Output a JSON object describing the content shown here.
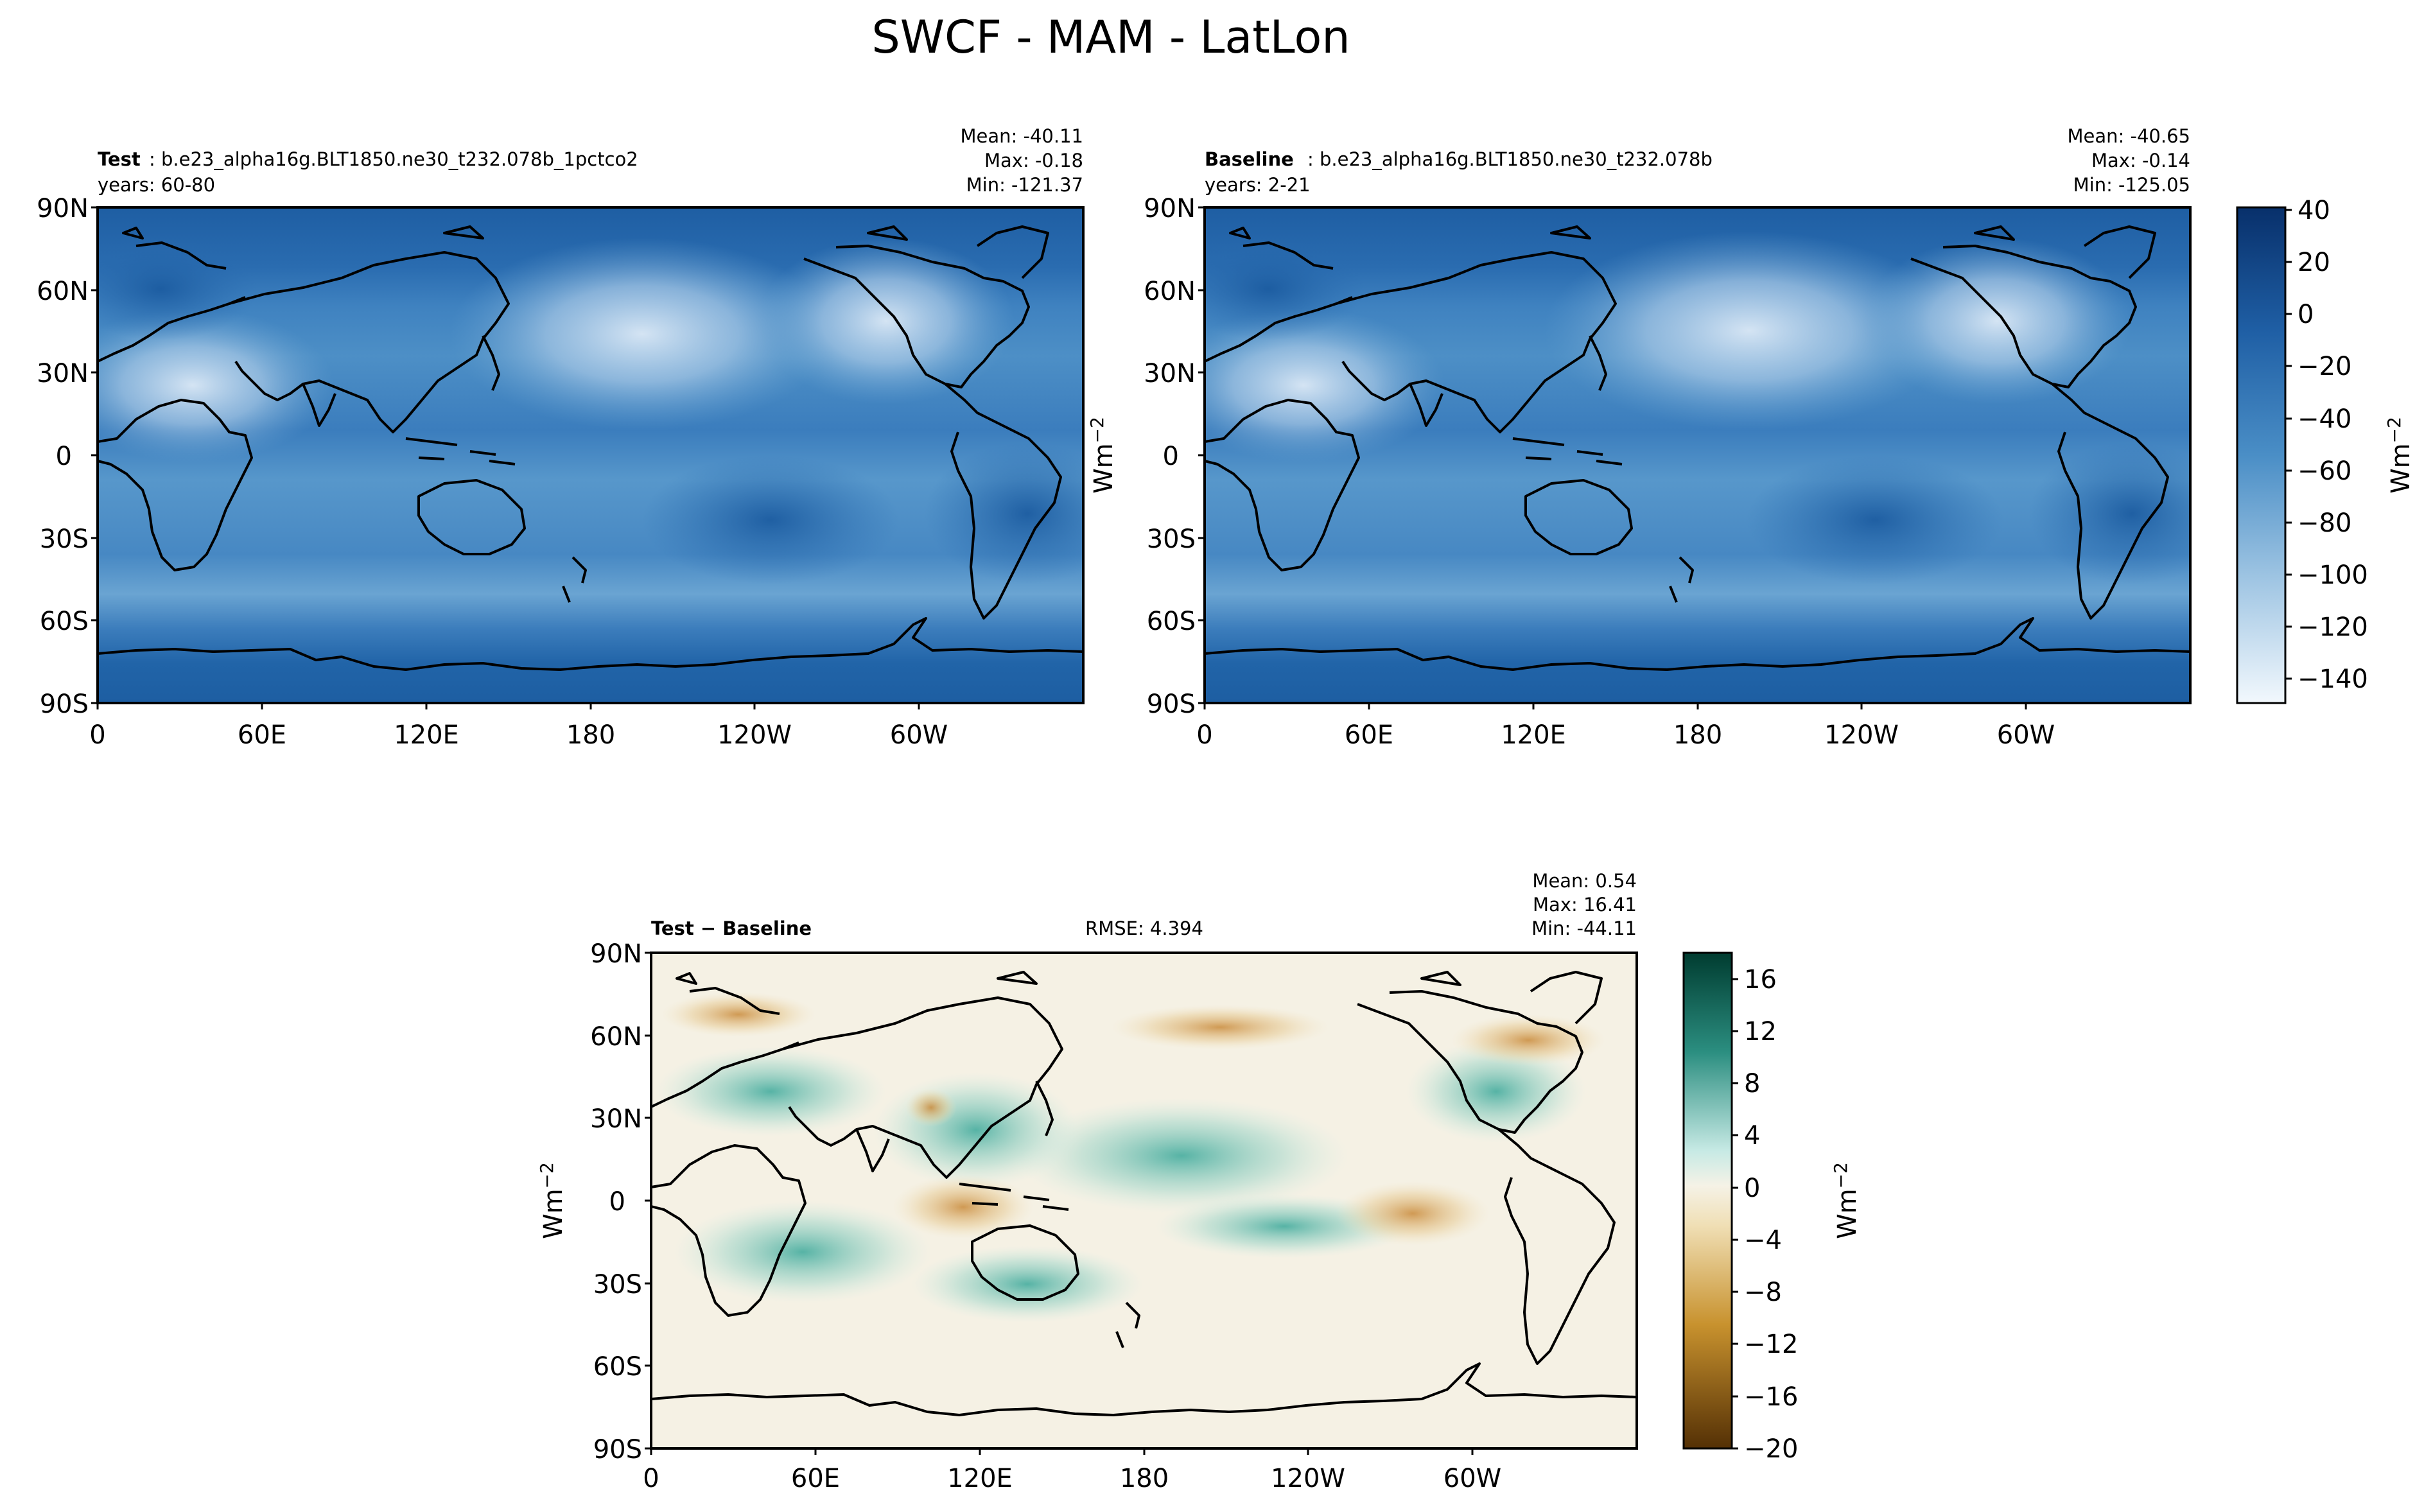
{
  "figure": {
    "title": "SWCF - MAM - LatLon"
  },
  "colors": {
    "ocean_base": "#2e6fb0",
    "ocean_light": "#c9def0",
    "diff_neutral": "#f5f1e4",
    "diff_pos": "#3aa89a",
    "diff_neg": "#c98a3a",
    "coast": "#000000"
  },
  "chart_data": [
    {
      "type": "heatmap",
      "id": "test",
      "label_bold": "Test",
      "label_rest": ": b.e23_alpha16g.BLT1850.ne30_t232.078b_1pctco2",
      "years": "years: 60-80",
      "stats": [
        "Mean: -40.11",
        "Max: -0.18",
        "Min: -121.37"
      ],
      "units": "Wm",
      "units_exp": "−2",
      "xticks": [
        "0",
        "60E",
        "120E",
        "180",
        "120W",
        "60W"
      ],
      "yticks": [
        "90N",
        "60N",
        "30N",
        "0",
        "30S",
        "60S",
        "90S"
      ],
      "xlim": [
        0,
        360
      ],
      "ylim": [
        -90,
        90
      ],
      "colormap": "Blues_r",
      "colorbar_ticks": [
        "40",
        "20",
        "0",
        "−20",
        "−40",
        "−60",
        "−80",
        "−100",
        "−120",
        "−140"
      ],
      "colorbar_range": [
        -150,
        40
      ]
    },
    {
      "type": "heatmap",
      "id": "baseline",
      "label_bold": "Baseline",
      "label_rest": ": b.e23_alpha16g.BLT1850.ne30_t232.078b",
      "years": "years: 2-21",
      "stats": [
        "Mean: -40.65",
        "Max: -0.14",
        "Min: -125.05"
      ],
      "units": "Wm",
      "units_exp": "−2",
      "xticks": [
        "0",
        "60E",
        "120E",
        "180",
        "120W",
        "60W"
      ],
      "yticks": [
        "90N",
        "60N",
        "30N",
        "0",
        "30S",
        "60S",
        "90S"
      ],
      "xlim": [
        0,
        360
      ],
      "ylim": [
        -90,
        90
      ],
      "colormap": "Blues_r",
      "colorbar_ticks": [
        "40",
        "20",
        "0",
        "−20",
        "−40",
        "−60",
        "−80",
        "−100",
        "−120",
        "−140"
      ],
      "colorbar_range": [
        -150,
        40
      ]
    },
    {
      "type": "heatmap",
      "id": "diff",
      "label_bold": "Test − Baseline",
      "rmse": "RMSE: 4.394",
      "stats": [
        "Mean:  0.54",
        "Max: 16.41",
        "Min: -44.11"
      ],
      "units": "Wm",
      "units_exp": "−2",
      "xticks": [
        "0",
        "60E",
        "120E",
        "180",
        "120W",
        "60W"
      ],
      "yticks": [
        "90N",
        "60N",
        "30N",
        "0",
        "30S",
        "60S",
        "90S"
      ],
      "xlim": [
        0,
        360
      ],
      "ylim": [
        -90,
        90
      ],
      "colormap": "BrBG",
      "colorbar_ticks": [
        "16",
        "12",
        "8",
        "4",
        "0",
        "−4",
        "−8",
        "−12",
        "−16",
        "−20"
      ],
      "colorbar_range": [
        -20,
        18
      ]
    }
  ]
}
